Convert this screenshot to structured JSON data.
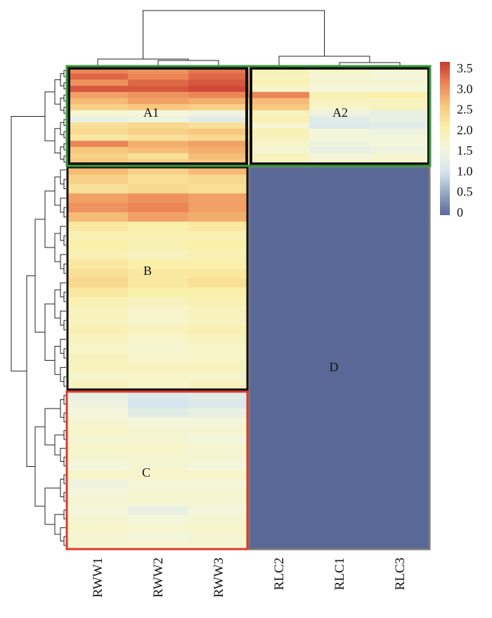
{
  "chart_data": {
    "type": "heatmap",
    "title": "",
    "columns": [
      "RWW1",
      "RWW2",
      "RWW3",
      "RLC2",
      "RLC1",
      "RLC3"
    ],
    "colorbar": {
      "ticks": [
        "3.5",
        "3.0",
        "2.5",
        "2.0",
        "1.5",
        "1.0",
        "0.5",
        "0"
      ],
      "range": [
        0,
        3.5
      ],
      "colors": {
        "0": "#5a6898",
        "1.0": "#d6e6ee",
        "1.5": "#f4f6dc",
        "2.0": "#faf0aa",
        "2.5": "#f8c87e",
        "3.0": "#ec8656",
        "3.5": "#c83a2e"
      }
    },
    "clusters": [
      {
        "label": "A1",
        "box_color": "#111111"
      },
      {
        "label": "A2",
        "box_color": "#111111"
      },
      {
        "label": "B",
        "box_color": "#111111"
      },
      {
        "label": "C",
        "box_color": "#e0382c"
      },
      {
        "label": "D",
        "box_color": "#7a7a7a"
      }
    ],
    "group_A_box_color": "#3a9a3a",
    "row_blocks": {
      "A": [
        [
          3.0,
          2.9,
          3.1,
          1.9,
          1.7,
          1.6
        ],
        [
          3.2,
          3.0,
          3.2,
          1.8,
          1.6,
          1.5
        ],
        [
          2.9,
          3.2,
          3.3,
          1.9,
          1.6,
          1.6
        ],
        [
          3.3,
          3.3,
          3.4,
          1.7,
          1.5,
          1.5
        ],
        [
          2.8,
          2.9,
          3.0,
          3.0,
          1.9,
          2.0
        ],
        [
          2.6,
          2.8,
          2.7,
          2.6,
          1.8,
          1.8
        ],
        [
          2.4,
          2.5,
          2.4,
          2.5,
          1.7,
          1.8
        ],
        [
          1.6,
          1.5,
          1.4,
          1.8,
          1.4,
          1.3
        ],
        [
          1.3,
          1.4,
          1.2,
          1.9,
          1.2,
          1.3
        ],
        [
          2.2,
          2.3,
          2.2,
          1.6,
          1.1,
          1.2
        ],
        [
          2.3,
          2.4,
          2.5,
          1.9,
          1.5,
          1.4
        ],
        [
          2.1,
          2.2,
          2.3,
          1.8,
          1.5,
          1.5
        ],
        [
          3.0,
          2.7,
          2.8,
          1.7,
          1.4,
          1.5
        ],
        [
          2.5,
          2.6,
          2.7,
          1.6,
          1.3,
          1.4
        ],
        [
          2.4,
          2.2,
          2.6,
          1.8,
          1.5,
          1.6
        ],
        [
          2.5,
          2.4,
          2.5,
          1.8,
          1.6,
          1.6
        ]
      ],
      "B": [
        [
          2.6,
          2.4,
          2.6,
          0,
          0,
          0
        ],
        [
          2.4,
          2.2,
          2.3,
          0,
          0,
          0
        ],
        [
          2.2,
          2.3,
          2.2,
          0,
          0,
          0
        ],
        [
          2.8,
          2.9,
          2.8,
          0,
          0,
          0
        ],
        [
          2.9,
          3.0,
          2.8,
          0,
          0,
          0
        ],
        [
          2.6,
          2.8,
          2.7,
          0,
          0,
          0
        ],
        [
          2.1,
          2.0,
          2.1,
          0,
          0,
          0
        ],
        [
          1.9,
          1.9,
          1.9,
          0,
          0,
          0
        ],
        [
          2.0,
          1.9,
          2.0,
          0,
          0,
          0
        ],
        [
          1.9,
          1.8,
          1.9,
          0,
          0,
          0
        ],
        [
          2.1,
          2.0,
          2.0,
          0,
          0,
          0
        ],
        [
          2.2,
          2.1,
          2.1,
          0,
          0,
          0
        ],
        [
          2.3,
          2.1,
          2.2,
          0,
          0,
          0
        ],
        [
          2.1,
          2.0,
          2.0,
          0,
          0,
          0
        ],
        [
          1.9,
          1.8,
          1.9,
          0,
          0,
          0
        ],
        [
          1.8,
          1.7,
          1.8,
          0,
          0,
          0
        ],
        [
          1.8,
          1.7,
          1.8,
          0,
          0,
          0
        ],
        [
          1.9,
          1.8,
          1.9,
          0,
          0,
          0
        ],
        [
          1.8,
          1.7,
          1.8,
          0,
          0,
          0
        ],
        [
          1.7,
          1.6,
          1.7,
          0,
          0,
          0
        ],
        [
          1.8,
          1.7,
          1.7,
          0,
          0,
          0
        ],
        [
          1.8,
          1.8,
          1.8,
          0,
          0,
          0
        ],
        [
          1.7,
          1.7,
          1.7,
          0,
          0,
          0
        ],
        [
          1.8,
          1.7,
          1.8,
          0,
          0,
          0
        ]
      ],
      "C": [
        [
          1.3,
          1.1,
          1.2,
          0,
          0,
          0
        ],
        [
          1.4,
          1.0,
          1.1,
          0,
          0,
          0
        ],
        [
          1.5,
          1.2,
          1.3,
          0,
          0,
          0
        ],
        [
          1.6,
          1.5,
          1.5,
          0,
          0,
          0
        ],
        [
          1.7,
          1.6,
          1.6,
          0,
          0,
          0
        ],
        [
          1.6,
          1.6,
          1.5,
          0,
          0,
          0
        ],
        [
          1.7,
          1.7,
          1.6,
          0,
          0,
          0
        ],
        [
          1.6,
          1.6,
          1.6,
          0,
          0,
          0
        ],
        [
          1.5,
          1.6,
          1.5,
          0,
          0,
          0
        ],
        [
          1.7,
          1.7,
          1.7,
          0,
          0,
          0
        ],
        [
          1.4,
          1.5,
          1.5,
          0,
          0,
          0
        ],
        [
          1.5,
          1.6,
          1.6,
          0,
          0,
          0
        ],
        [
          1.6,
          1.6,
          1.6,
          0,
          0,
          0
        ],
        [
          1.5,
          1.3,
          1.5,
          0,
          0,
          0
        ],
        [
          1.6,
          1.5,
          1.6,
          0,
          0,
          0
        ],
        [
          1.7,
          1.6,
          1.7,
          0,
          0,
          0
        ],
        [
          1.6,
          1.5,
          1.6,
          0,
          0,
          0
        ],
        [
          1.6,
          1.6,
          1.6,
          0,
          0,
          0
        ]
      ]
    }
  }
}
